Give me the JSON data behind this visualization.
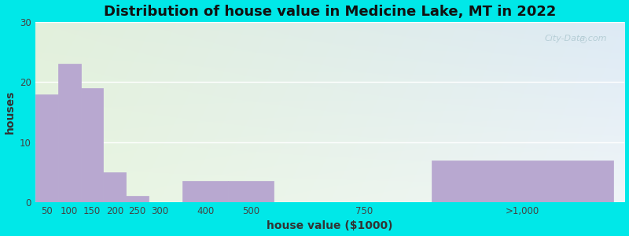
{
  "title": "Distribution of house value in Medicine Lake, MT in 2022",
  "xlabel": "house value ($1000)",
  "ylabel": "houses",
  "bar_labels": [
    "50",
    "100",
    "150",
    "200",
    "250",
    "300",
    "400",
    "500",
    "750",
    ">1,000"
  ],
  "bar_values": [
    18,
    23,
    19,
    5,
    1,
    0,
    3.5,
    3.5,
    0,
    7
  ],
  "bar_color": "#b8a8d0",
  "background_outer": "#00e8e8",
  "background_tl": "#e2f0dc",
  "background_tr": "#ddeaf5",
  "background_bl": "#d8ecd8",
  "background_br": "#dce8f2",
  "ylim": [
    0,
    30
  ],
  "yticks": [
    0,
    10,
    20,
    30
  ],
  "title_fontsize": 13,
  "axis_label_fontsize": 10,
  "tick_fontsize": 8.5,
  "watermark_text": "City-Data.com",
  "x_positions": [
    50,
    100,
    150,
    200,
    250,
    300,
    400,
    500,
    750,
    1100
  ],
  "bar_widths": [
    50,
    50,
    50,
    50,
    50,
    50,
    100,
    100,
    100,
    400
  ],
  "xmin": 25,
  "xmax": 1325
}
